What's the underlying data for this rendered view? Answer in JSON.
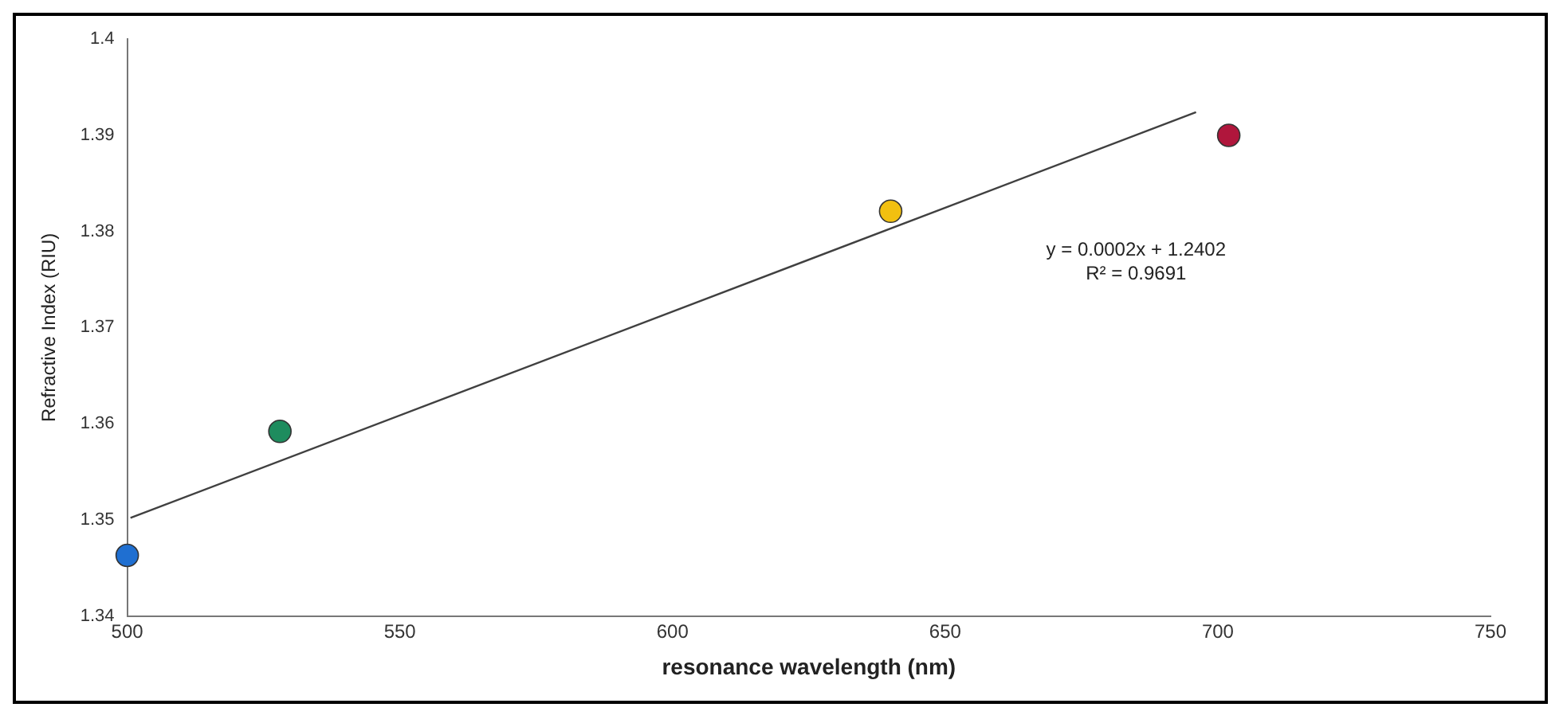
{
  "chart_data": {
    "type": "scatter",
    "xlabel": "resonance wavelength (nm)",
    "ylabel": "Refractive Index (RIU)",
    "xlim": [
      500,
      750
    ],
    "xticks": [
      500,
      550,
      600,
      650,
      700,
      750
    ],
    "ylim": [
      1.34,
      1.4
    ],
    "yticks": [
      1.34,
      1.35,
      1.36,
      1.37,
      1.38,
      1.39,
      1.4
    ],
    "grid": false,
    "legend": false,
    "marker": "circle",
    "series": [
      {
        "x": [
          500,
          528,
          640,
          702
        ],
        "values": [
          1.3463,
          1.3592,
          1.3821,
          1.39
        ],
        "colors": [
          "#1f6fd1",
          "#1e8c5e",
          "#f2c010",
          "#b0163c"
        ]
      },
      {
        "type": "line",
        "x": [
          500.6,
          696
        ],
        "values": [
          1.3502,
          1.3924
        ],
        "color": "#404040",
        "marker": "none",
        "line_style": "solid"
      }
    ],
    "annotations": [
      "y = 0.0002x + 1.2402",
      "R² = 0.9691"
    ]
  }
}
